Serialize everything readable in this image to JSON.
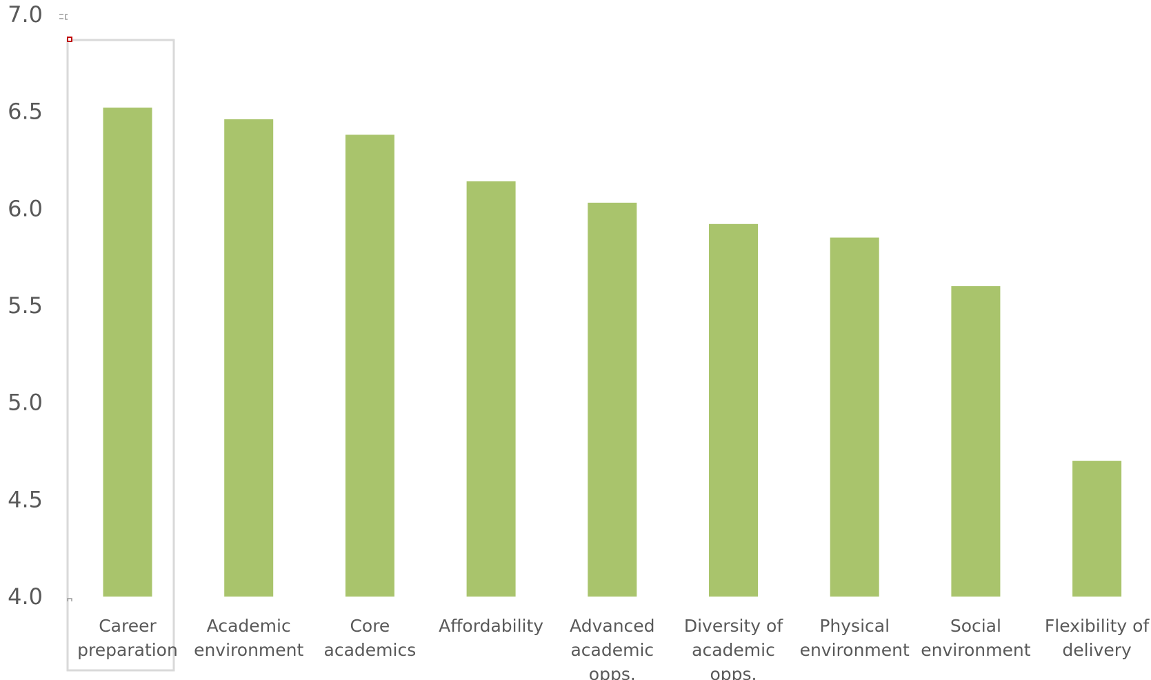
{
  "chart_data": {
    "type": "bar",
    "categories": [
      [
        "Career",
        "preparation"
      ],
      [
        "Academic",
        "environment"
      ],
      [
        "Core",
        "academics"
      ],
      [
        "Affordability"
      ],
      [
        "Advanced",
        "academic",
        "opps."
      ],
      [
        "Diversity of",
        "academic",
        "opps."
      ],
      [
        "Physical",
        "environment"
      ],
      [
        "Social",
        "environment"
      ],
      [
        "Flexibility of",
        "delivery"
      ]
    ],
    "values": [
      6.52,
      6.46,
      6.38,
      6.14,
      6.03,
      5.92,
      5.85,
      5.6,
      4.7
    ],
    "ylim": [
      4.0,
      7.0
    ],
    "yticks": [
      "4.0",
      "4.5",
      "5.0",
      "5.5",
      "6.0",
      "6.5",
      "7.0"
    ],
    "ytick_values": [
      4.0,
      4.5,
      5.0,
      5.5,
      6.0,
      6.5,
      7.0
    ],
    "title": "",
    "xlabel": "",
    "ylabel": "",
    "bar_color": "#a9c46c",
    "text_color": "#595959",
    "grid": false,
    "legend": "none",
    "selected_category_index": 0
  }
}
